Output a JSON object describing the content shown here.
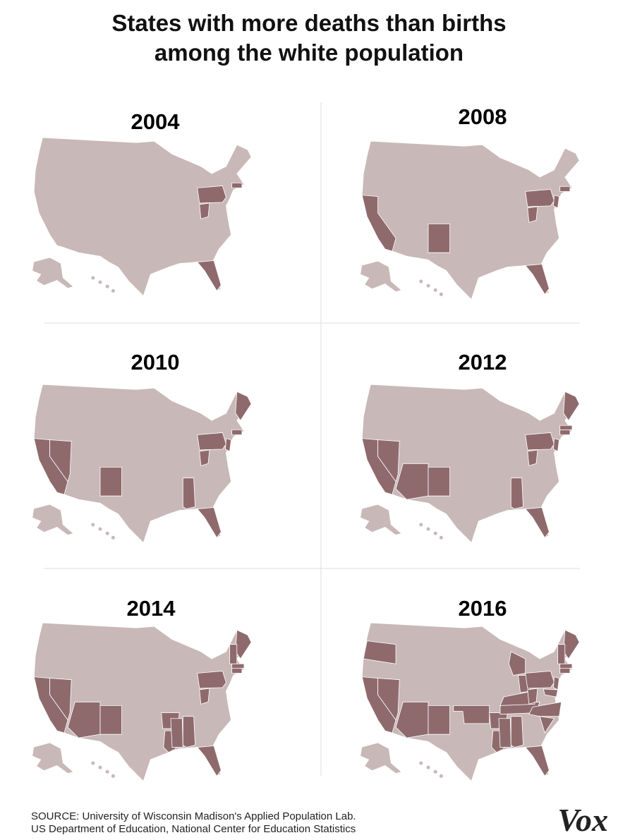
{
  "title": [
    "States with more deaths than births",
    "among the white population"
  ],
  "panels": [
    {
      "year": "2004"
    },
    {
      "year": "2008"
    },
    {
      "year": "2010"
    },
    {
      "year": "2012"
    },
    {
      "year": "2014"
    },
    {
      "year": "2016"
    }
  ],
  "source": [
    "SOURCE: University of Wisconsin Madison's Applied Population Lab.",
    "US Department of Education, National Center for Education Statistics"
  ],
  "logo": "Vox"
}
